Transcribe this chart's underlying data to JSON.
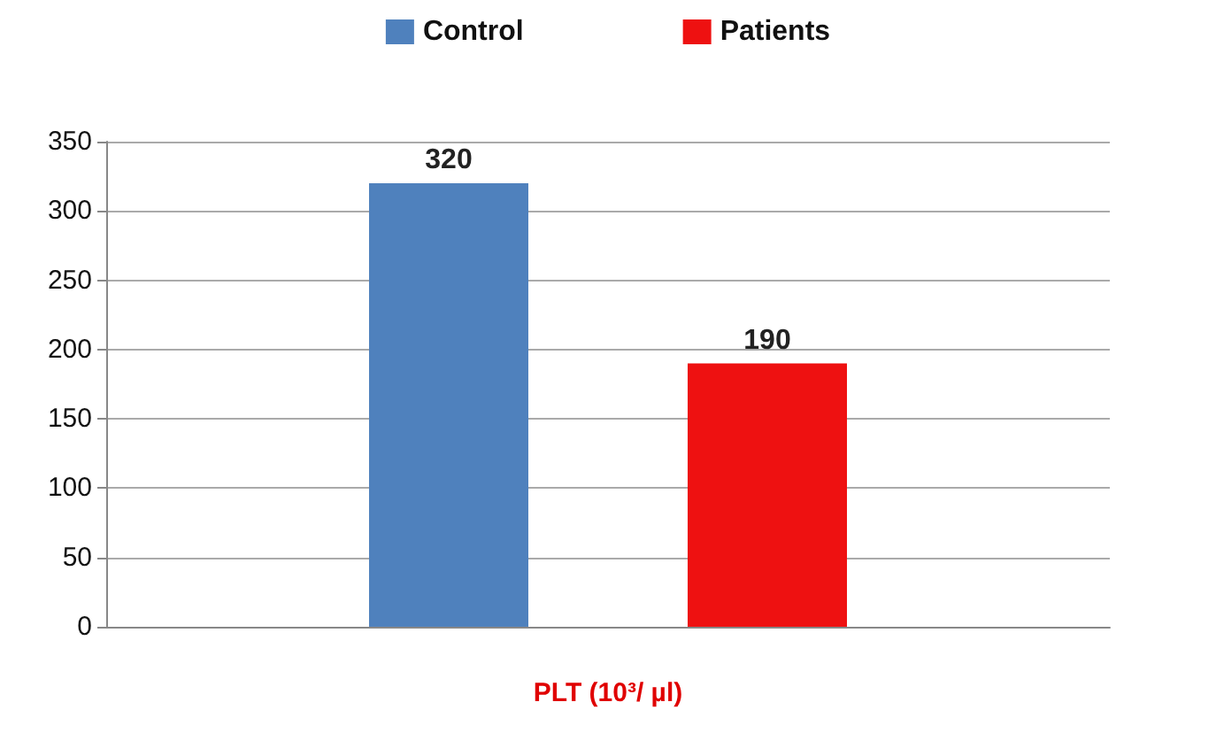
{
  "chart_data": {
    "type": "bar",
    "categories": [
      "PLT (10³/ µl)"
    ],
    "series": [
      {
        "name": "Control",
        "color": "#4f81bd",
        "values": [
          320
        ]
      },
      {
        "name": "Patients",
        "color": "#ee1111",
        "values": [
          190
        ]
      }
    ],
    "ylim": [
      0,
      350
    ],
    "yticks": [
      0,
      50,
      100,
      150,
      200,
      250,
      300,
      350
    ],
    "grid": "y",
    "legend": "top",
    "data_labels": true
  }
}
